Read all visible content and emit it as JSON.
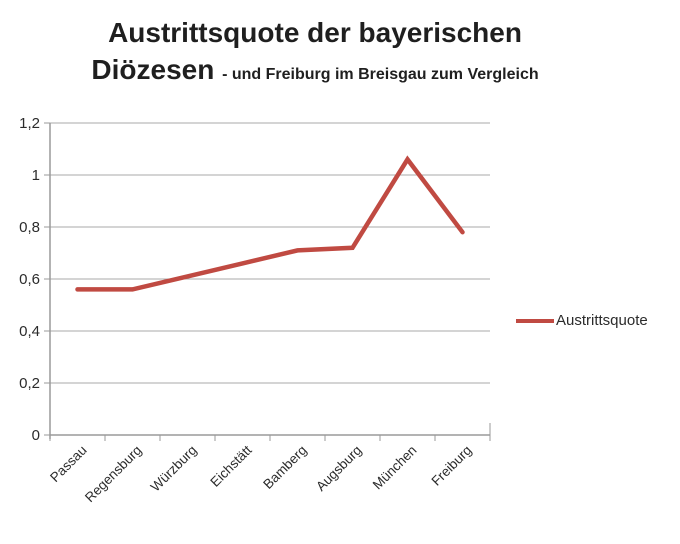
{
  "title": {
    "line1": "Austrittsquote der bayerischen",
    "line2_large": "Diözesen",
    "line2_small": "- und Freiburg im Breisgau zum Vergleich"
  },
  "legend": {
    "label": "Austrittsquote"
  },
  "colors": {
    "line": "#c04a42",
    "grid": "#a9a9a9",
    "axis": "#9a9a9a",
    "text": "#2b2b2b"
  },
  "chart_data": {
    "type": "line",
    "title": "Austrittsquote der bayerischen Diözesen - und Freiburg im Breisgau zum Vergleich",
    "categories": [
      "Passau",
      "Regensburg",
      "Würzburg",
      "Eichstätt",
      "Bamberg",
      "Augsburg",
      "München",
      "Freiburg"
    ],
    "series": [
      {
        "name": "Austrittsquote",
        "values": [
          0.56,
          0.56,
          0.61,
          0.66,
          0.71,
          0.72,
          1.06,
          0.78
        ]
      }
    ],
    "xlabel": "",
    "ylabel": "",
    "ylim": [
      0,
      1.2
    ],
    "y_ticks": [
      {
        "v": 0,
        "label": "0"
      },
      {
        "v": 0.2,
        "label": "0,2"
      },
      {
        "v": 0.4,
        "label": "0,4"
      },
      {
        "v": 0.6,
        "label": "0,6"
      },
      {
        "v": 0.8,
        "label": "0,8"
      },
      {
        "v": 1,
        "label": "1"
      },
      {
        "v": 1.2,
        "label": "1,2"
      }
    ],
    "grid": "horizontal",
    "legend_position": "right",
    "line_color": "#c04a42"
  }
}
